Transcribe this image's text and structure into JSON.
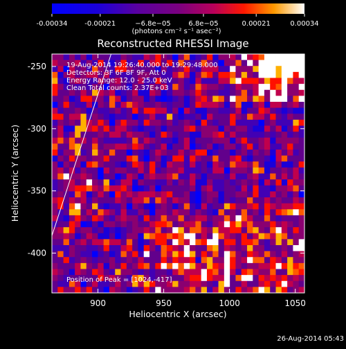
{
  "chart_data": {
    "type": "heatmap",
    "title": "Reconstructed RHESSI Image",
    "xlabel": "Heliocentric X (arcsec)",
    "ylabel": "Heliocentric Y (arcsec)",
    "xlim": [
      865,
      1057
    ],
    "ylim": [
      -432,
      -240
    ],
    "x_ticks": [
      900,
      950,
      1000,
      1050
    ],
    "y_ticks": [
      -250,
      -300,
      -350,
      -400
    ],
    "grid": false,
    "colorbar": {
      "label": "(photons cm⁻² s⁻¹ asec⁻²)",
      "ticks": [
        "-0.00034",
        "-0.00021",
        "−6.8e−05",
        "6.8e−05",
        "0.00021",
        "0.00034"
      ],
      "tick_values": [
        -0.00034,
        -0.00021,
        -6.8e-05,
        6.8e-05,
        0.00021,
        0.00034
      ],
      "range": [
        -0.00034,
        0.00034
      ]
    },
    "info": {
      "time_range": "19-Aug-2014 19:26:40.000 to 19:29:48.000",
      "detectors": "Detectors: 3F 6F 8F 9F, Att 0",
      "energy_range": "Energy Range: 12.0 - 25.0 keV",
      "method_counts": "Clean    Total counts: 2.37E+03",
      "peak": "Position of Peak = [1024,-417]"
    },
    "limb_line": {
      "x": [
        865,
        910
      ],
      "y": [
        -386,
        -240
      ]
    }
  },
  "footer": {
    "timestamp": "26-Aug-2014 05:43"
  }
}
